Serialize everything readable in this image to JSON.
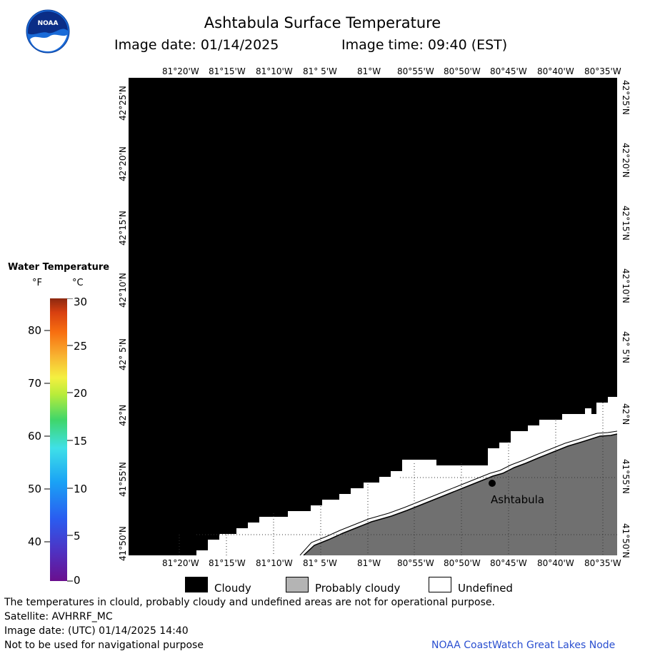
{
  "title": "Ashtabula Surface Temperature",
  "image_date_label": "Image date: 01/14/2025",
  "image_time_label": "Image time: 09:40 (EST)",
  "logo": {
    "icon": "noaa-logo-icon",
    "text": "NOAA"
  },
  "lon_labels": [
    "81°20'W",
    "81°15'W",
    "81°10'W",
    "81° 5'W",
    "81°W",
    "80°55'W",
    "80°50'W",
    "80°45'W",
    "80°40'W",
    "80°35'W"
  ],
  "lat_labels": [
    "42°25'N",
    "42°20'N",
    "42°15'N",
    "42°10'N",
    "42° 5'N",
    "42°N",
    "41°55'N",
    "41°50'N"
  ],
  "place_label": "Ashtabula",
  "legend": {
    "title": "Water Temperature",
    "unit_f": "°F",
    "unit_c": "°C",
    "f_ticks": [
      "80",
      "70",
      "60",
      "50",
      "40"
    ],
    "c_ticks": [
      "30",
      "25",
      "20",
      "15",
      "10",
      "5",
      "0"
    ]
  },
  "key": {
    "cloudy": "Cloudy",
    "probably_cloudy": "Probably cloudy",
    "undefined": "Undefined",
    "colors": {
      "cloudy": "#000000",
      "probably_cloudy": "#b4b4b4",
      "undefined": "#ffffff",
      "land": "#707070"
    }
  },
  "footer": {
    "line1": "The temperatures in clould, probably cloudy and undefined areas are not for operational purpose.",
    "line2": "Satellite: AVHRRF_MC",
    "line3": "Image date: (UTC) 01/14/2025  14:40",
    "line4": "Not to be used for navigational purpose",
    "credit": "NOAA CoastWatch Great Lakes Node"
  }
}
